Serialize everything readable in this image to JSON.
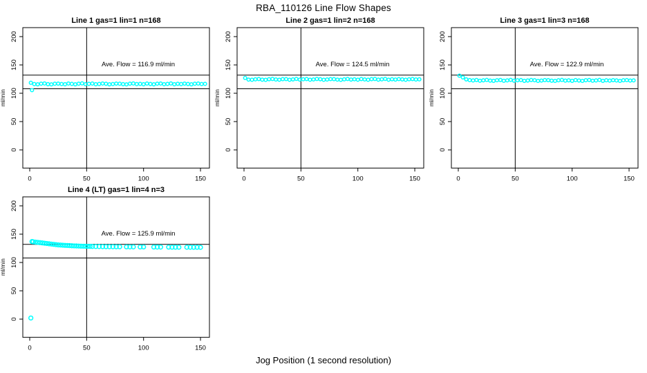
{
  "page": {
    "title": "RBA_110126  Line Flow Shapes",
    "xlabel": "Jog Position (1 second resolution)"
  },
  "marker_color": "#00FFFF",
  "chart_data": [
    {
      "type": "scatter",
      "title": "Line 1 gas=1 lin=1 n=168",
      "ylabel": "ml/min",
      "annotation": "Ave. Flow =  116.9  ml/min",
      "ave_flow": 116.9,
      "x_ticks": [
        0,
        50,
        100,
        150
      ],
      "y_ticks": [
        0,
        50,
        100,
        150,
        200
      ],
      "vline_x": 50,
      "hlines": [
        132,
        108
      ],
      "marker_r": 2.3,
      "series": {
        "x_start": 1,
        "x_step": 3,
        "y": [
          118.5,
          116.2,
          115.8,
          116.9,
          117.3,
          116.1,
          115.7,
          116.8,
          117.0,
          116.3,
          115.9,
          117.2,
          116.5,
          115.8,
          116.9,
          117.4,
          116.0,
          116.6,
          117.1,
          115.9,
          116.4,
          117.2,
          116.7,
          115.8,
          116.3,
          117.0,
          116.8,
          116.1,
          115.7,
          116.9,
          117.3,
          116.2,
          116.6,
          115.9,
          117.1,
          116.4,
          115.8,
          116.9,
          117.2,
          116.0,
          116.5,
          117.3,
          115.9,
          116.7,
          116.2,
          117.0,
          116.4,
          115.8,
          116.8,
          117.1,
          116.3,
          116.6
        ]
      },
      "extra_points": [
        [
          2,
          105.5
        ]
      ]
    },
    {
      "type": "scatter",
      "title": "Line 2 gas=1 lin=2 n=168",
      "ylabel": "ml/min",
      "annotation": "Ave. Flow =  124.5  ml/min",
      "ave_flow": 124.5,
      "x_ticks": [
        0,
        50,
        100,
        150
      ],
      "y_ticks": [
        0,
        50,
        100,
        150,
        200
      ],
      "vline_x": 50,
      "hlines": [
        132,
        108
      ],
      "marker_r": 2.3,
      "series": {
        "x_start": 1,
        "x_step": 3,
        "y": [
          127.0,
          124.1,
          123.8,
          124.6,
          125.1,
          124.0,
          123.7,
          124.8,
          125.2,
          124.3,
          123.9,
          124.9,
          125.0,
          123.8,
          124.5,
          125.3,
          124.1,
          124.7,
          125.1,
          123.9,
          124.4,
          125.2,
          124.8,
          123.8,
          124.3,
          125.0,
          124.9,
          124.1,
          123.7,
          124.6,
          125.2,
          124.2,
          124.7,
          123.9,
          125.1,
          124.4,
          123.8,
          124.9,
          125.2,
          124.0,
          124.6,
          125.3,
          123.9,
          124.8,
          124.2,
          125.0,
          124.5,
          123.8,
          124.7,
          125.1,
          124.3,
          124.6
        ]
      },
      "extra_points": []
    },
    {
      "type": "scatter",
      "title": "Line 3 gas=1 lin=3 n=168",
      "ylabel": "ml/min",
      "annotation": "Ave. Flow =  122.9  ml/min",
      "ave_flow": 122.9,
      "x_ticks": [
        0,
        50,
        100,
        150
      ],
      "y_ticks": [
        0,
        50,
        100,
        150,
        200
      ],
      "vline_x": 50,
      "hlines": [
        132,
        108
      ],
      "marker_r": 2.3,
      "series": {
        "x_start": 1,
        "x_step": 3,
        "y": [
          131.0,
          128.0,
          124.5,
          123.2,
          122.6,
          123.4,
          122.1,
          122.8,
          123.5,
          122.3,
          121.9,
          123.0,
          123.4,
          122.0,
          122.7,
          123.6,
          122.2,
          122.9,
          123.3,
          121.9,
          122.5,
          123.4,
          123.0,
          121.8,
          122.4,
          123.2,
          123.1,
          122.2,
          121.8,
          122.9,
          123.5,
          122.3,
          122.8,
          121.9,
          123.2,
          122.5,
          121.8,
          123.0,
          123.4,
          122.1,
          122.6,
          123.5,
          121.9,
          122.9,
          122.3,
          123.1,
          122.6,
          121.8,
          122.9,
          123.2,
          122.4,
          122.7
        ]
      },
      "extra_points": []
    },
    {
      "type": "scatter",
      "title": "Line 4 (LT) gas=1 lin=4 n=3",
      "ylabel": "ml/min",
      "annotation": "Ave. Flow =  125.9  ml/min",
      "ave_flow": 125.9,
      "x_ticks": [
        0,
        50,
        100,
        150
      ],
      "y_ticks": [
        0,
        50,
        100,
        150,
        200
      ],
      "vline_x": 50,
      "hlines": [
        132,
        108
      ],
      "marker_r": 2.9,
      "series": {
        "x_start": null,
        "x_step": null,
        "y": []
      },
      "extra_points": [
        [
          1,
          2
        ],
        [
          2,
          137
        ],
        [
          3,
          136.5
        ],
        [
          5,
          136
        ],
        [
          7,
          135.5
        ],
        [
          9,
          135
        ],
        [
          11,
          134.5
        ],
        [
          13,
          134
        ],
        [
          15,
          133.5
        ],
        [
          17,
          133
        ],
        [
          19,
          132.5
        ],
        [
          21,
          132
        ],
        [
          23,
          131.5
        ],
        [
          25,
          131
        ],
        [
          27,
          130.8
        ],
        [
          29,
          130.5
        ],
        [
          31,
          130.2
        ],
        [
          33,
          130
        ],
        [
          35,
          129.8
        ],
        [
          37,
          129.5
        ],
        [
          39,
          129.3
        ],
        [
          41,
          129.2
        ],
        [
          43,
          129
        ],
        [
          45,
          128.8
        ],
        [
          47,
          128.7
        ],
        [
          49,
          128.6
        ],
        [
          51,
          128.5
        ],
        [
          53,
          128.4
        ],
        [
          55,
          128.3
        ],
        [
          58,
          128.2
        ],
        [
          61,
          128.1
        ],
        [
          64,
          128.0
        ],
        [
          67,
          127.9
        ],
        [
          70,
          127.8
        ],
        [
          73,
          127.8
        ],
        [
          76,
          127.7
        ],
        [
          79,
          127.7
        ],
        [
          85,
          127.6
        ],
        [
          88,
          127.5
        ],
        [
          91,
          127.5
        ],
        [
          97,
          127.4
        ],
        [
          100,
          127.4
        ],
        [
          109,
          127.3
        ],
        [
          112,
          127.2
        ],
        [
          115,
          127.2
        ],
        [
          122,
          127.1
        ],
        [
          125,
          127.0
        ],
        [
          128,
          127.0
        ],
        [
          131,
          127.0
        ],
        [
          138,
          126.9
        ],
        [
          141,
          126.9
        ],
        [
          144,
          126.8
        ],
        [
          147,
          126.8
        ],
        [
          150,
          126.7
        ]
      ]
    }
  ]
}
